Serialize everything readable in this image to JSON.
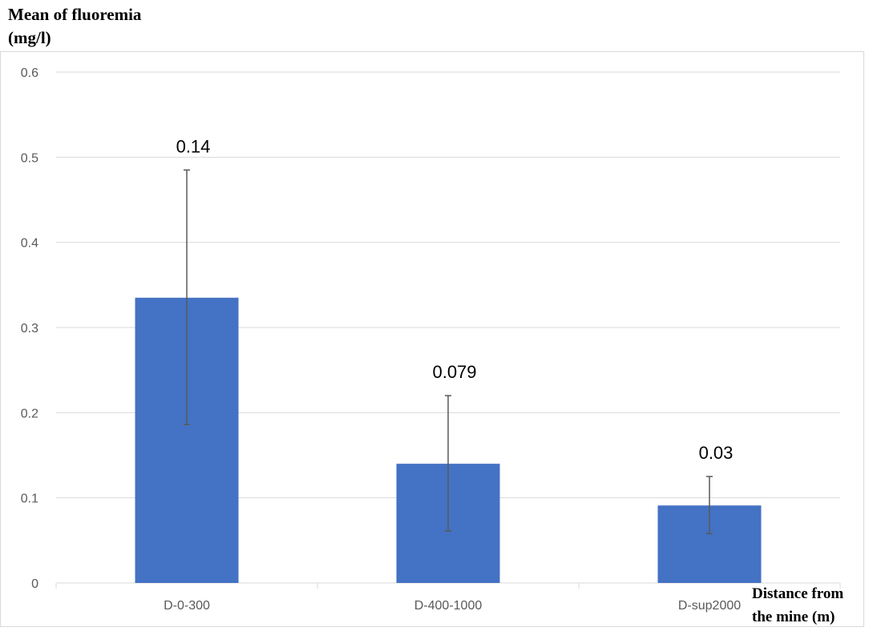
{
  "chart_data": {
    "type": "bar",
    "categories": [
      "D-0-300",
      "D-400-1000",
      "D-sup2000"
    ],
    "values": [
      0.335,
      0.14,
      0.091
    ],
    "error_upper": [
      0.485,
      0.22,
      0.125
    ],
    "error_lower": [
      0.186,
      0.061,
      0.058
    ],
    "data_labels": [
      "0.14",
      "0.079",
      "0.03"
    ],
    "ylabel": "Mean of fluoremia (mg/l)",
    "ylabel_lines": [
      "Mean of fluoremia",
      "(mg/l)"
    ],
    "xlabel": "Distance from the mine (m)",
    "xlabel_lines": [
      "Distance from",
      "the mine (m)"
    ],
    "ylim": [
      0,
      0.6
    ],
    "yticks": [
      "0",
      "0.1",
      "0.2",
      "0.3",
      "0.4",
      "0.5",
      "0.6"
    ],
    "grid": true,
    "bar_color": "#4472c4",
    "error_color": "#595959",
    "grid_color": "#d9d9d9"
  }
}
